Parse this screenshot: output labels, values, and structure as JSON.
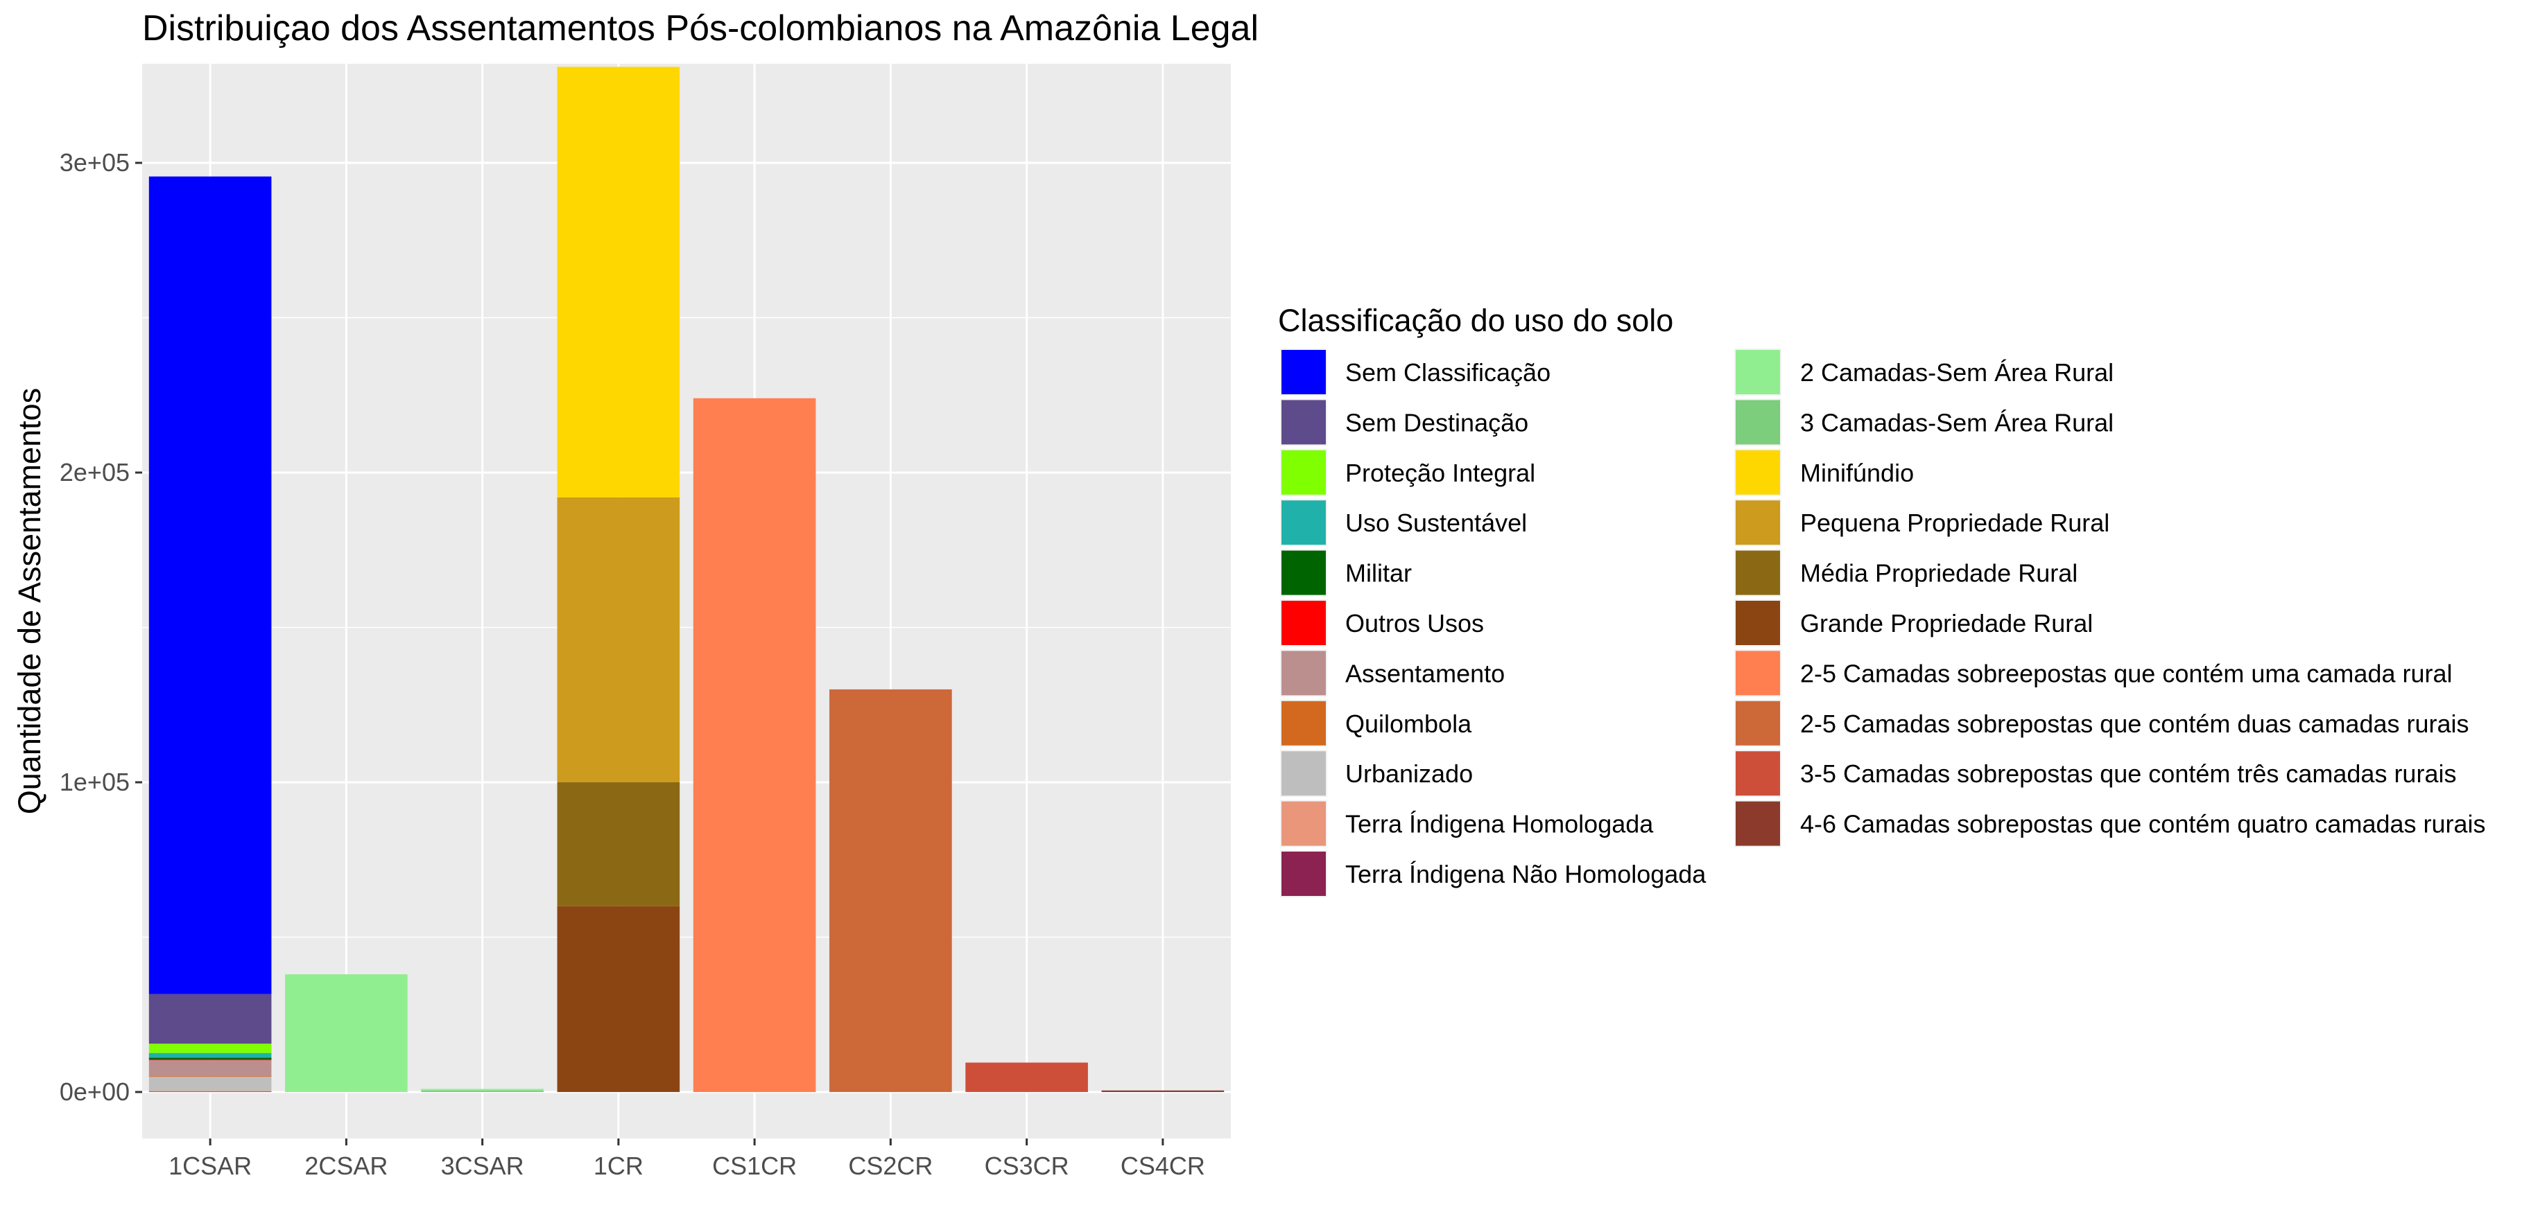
{
  "chart_data": {
    "type": "bar",
    "stacked": true,
    "title": "Distribuiçao dos Assentamentos Pós-colombianos na Amazônia Legal",
    "xlabel": "",
    "ylabel": "Quantidade de Assentamentos",
    "ylim": [
      -15000,
      332000
    ],
    "yticks": [
      {
        "value": 0,
        "label": "0e+00"
      },
      {
        "value": 100000,
        "label": "1e+05"
      },
      {
        "value": 200000,
        "label": "2e+05"
      },
      {
        "value": 300000,
        "label": "3e+05"
      }
    ],
    "grid": true,
    "legend_position": "right",
    "legend_title": "Classificação do uso do solo",
    "categories": [
      "1CSAR",
      "2CSAR",
      "3CSAR",
      "1CR",
      "CS1CR",
      "CS2CR",
      "CS3CR",
      "CS4CR"
    ],
    "series": [
      {
        "name": "Sem Classificação",
        "color": "#0000FF",
        "values": [
          264000,
          0,
          0,
          0,
          0,
          0,
          0,
          0
        ]
      },
      {
        "name": "Sem Destinação",
        "color": "#5E4B8B",
        "values": [
          16000,
          0,
          0,
          0,
          0,
          0,
          0,
          0
        ]
      },
      {
        "name": "Proteção Integral",
        "color": "#7FFF00",
        "values": [
          3000,
          0,
          0,
          0,
          0,
          0,
          0,
          0
        ]
      },
      {
        "name": "Uso Sustentável",
        "color": "#20B2AA",
        "values": [
          1500,
          0,
          0,
          0,
          0,
          0,
          0,
          0
        ]
      },
      {
        "name": "Militar",
        "color": "#006400",
        "values": [
          500,
          0,
          0,
          0,
          0,
          0,
          0,
          0
        ]
      },
      {
        "name": "Outros Usos",
        "color": "#FF0000",
        "values": [
          300,
          0,
          0,
          0,
          0,
          0,
          0,
          0
        ]
      },
      {
        "name": "Assentamento",
        "color": "#BC8F8F",
        "values": [
          5200,
          0,
          0,
          0,
          0,
          0,
          0,
          0
        ]
      },
      {
        "name": "Quilombola",
        "color": "#D2691E",
        "values": [
          200,
          0,
          0,
          0,
          0,
          0,
          0,
          0
        ]
      },
      {
        "name": "Urbanizado",
        "color": "#BEBEBE",
        "values": [
          4500,
          0,
          0,
          0,
          0,
          0,
          0,
          0
        ]
      },
      {
        "name": "Terra Índigena Homologada",
        "color": "#E9967A",
        "values": [
          300,
          0,
          0,
          0,
          0,
          0,
          0,
          0
        ]
      },
      {
        "name": "Terra Índigena Não Homologada",
        "color": "#8B2252",
        "values": [
          100,
          0,
          0,
          0,
          0,
          0,
          0,
          0
        ]
      },
      {
        "name": "2 Camadas-Sem Área Rural",
        "color": "#90EE90",
        "values": [
          0,
          38000,
          500,
          0,
          0,
          0,
          0,
          0
        ]
      },
      {
        "name": "3 Camadas-Sem Área Rural",
        "color": "#7CCD7C",
        "values": [
          0,
          0,
          500,
          0,
          0,
          0,
          0,
          0
        ]
      },
      {
        "name": "Minifúndio",
        "color": "#FFD700",
        "values": [
          0,
          0,
          0,
          139000,
          0,
          0,
          0,
          0
        ]
      },
      {
        "name": "Pequena Propriedade Rural",
        "color": "#CD9B1D",
        "values": [
          0,
          0,
          0,
          92000,
          0,
          0,
          0,
          0
        ]
      },
      {
        "name": "Média Propriedade Rural",
        "color": "#8B6914",
        "values": [
          0,
          0,
          0,
          40000,
          0,
          0,
          0,
          0
        ]
      },
      {
        "name": "Grande Propriedade Rural",
        "color": "#8B4513",
        "values": [
          0,
          0,
          0,
          60000,
          0,
          0,
          0,
          0
        ]
      },
      {
        "name": "2-5 Camadas sobreepostas que contém  uma camada rural",
        "color": "#FF7F50",
        "values": [
          0,
          0,
          0,
          0,
          224000,
          0,
          0,
          0
        ]
      },
      {
        "name": "2-5 Camadas sobrepostas que contém duas camadas rurais",
        "color": "#CD6839",
        "values": [
          0,
          0,
          0,
          0,
          0,
          130000,
          0,
          0
        ]
      },
      {
        "name": "3-5 Camadas sobrepostas que contém três camadas rurais",
        "color": "#CD4F39",
        "values": [
          0,
          0,
          0,
          0,
          0,
          0,
          9500,
          0
        ]
      },
      {
        "name": "4-6 Camadas sobrepostas que contém quatro camadas rurais",
        "color": "#8B3A2B",
        "values": [
          0,
          0,
          0,
          0,
          0,
          0,
          0,
          500
        ]
      }
    ]
  }
}
